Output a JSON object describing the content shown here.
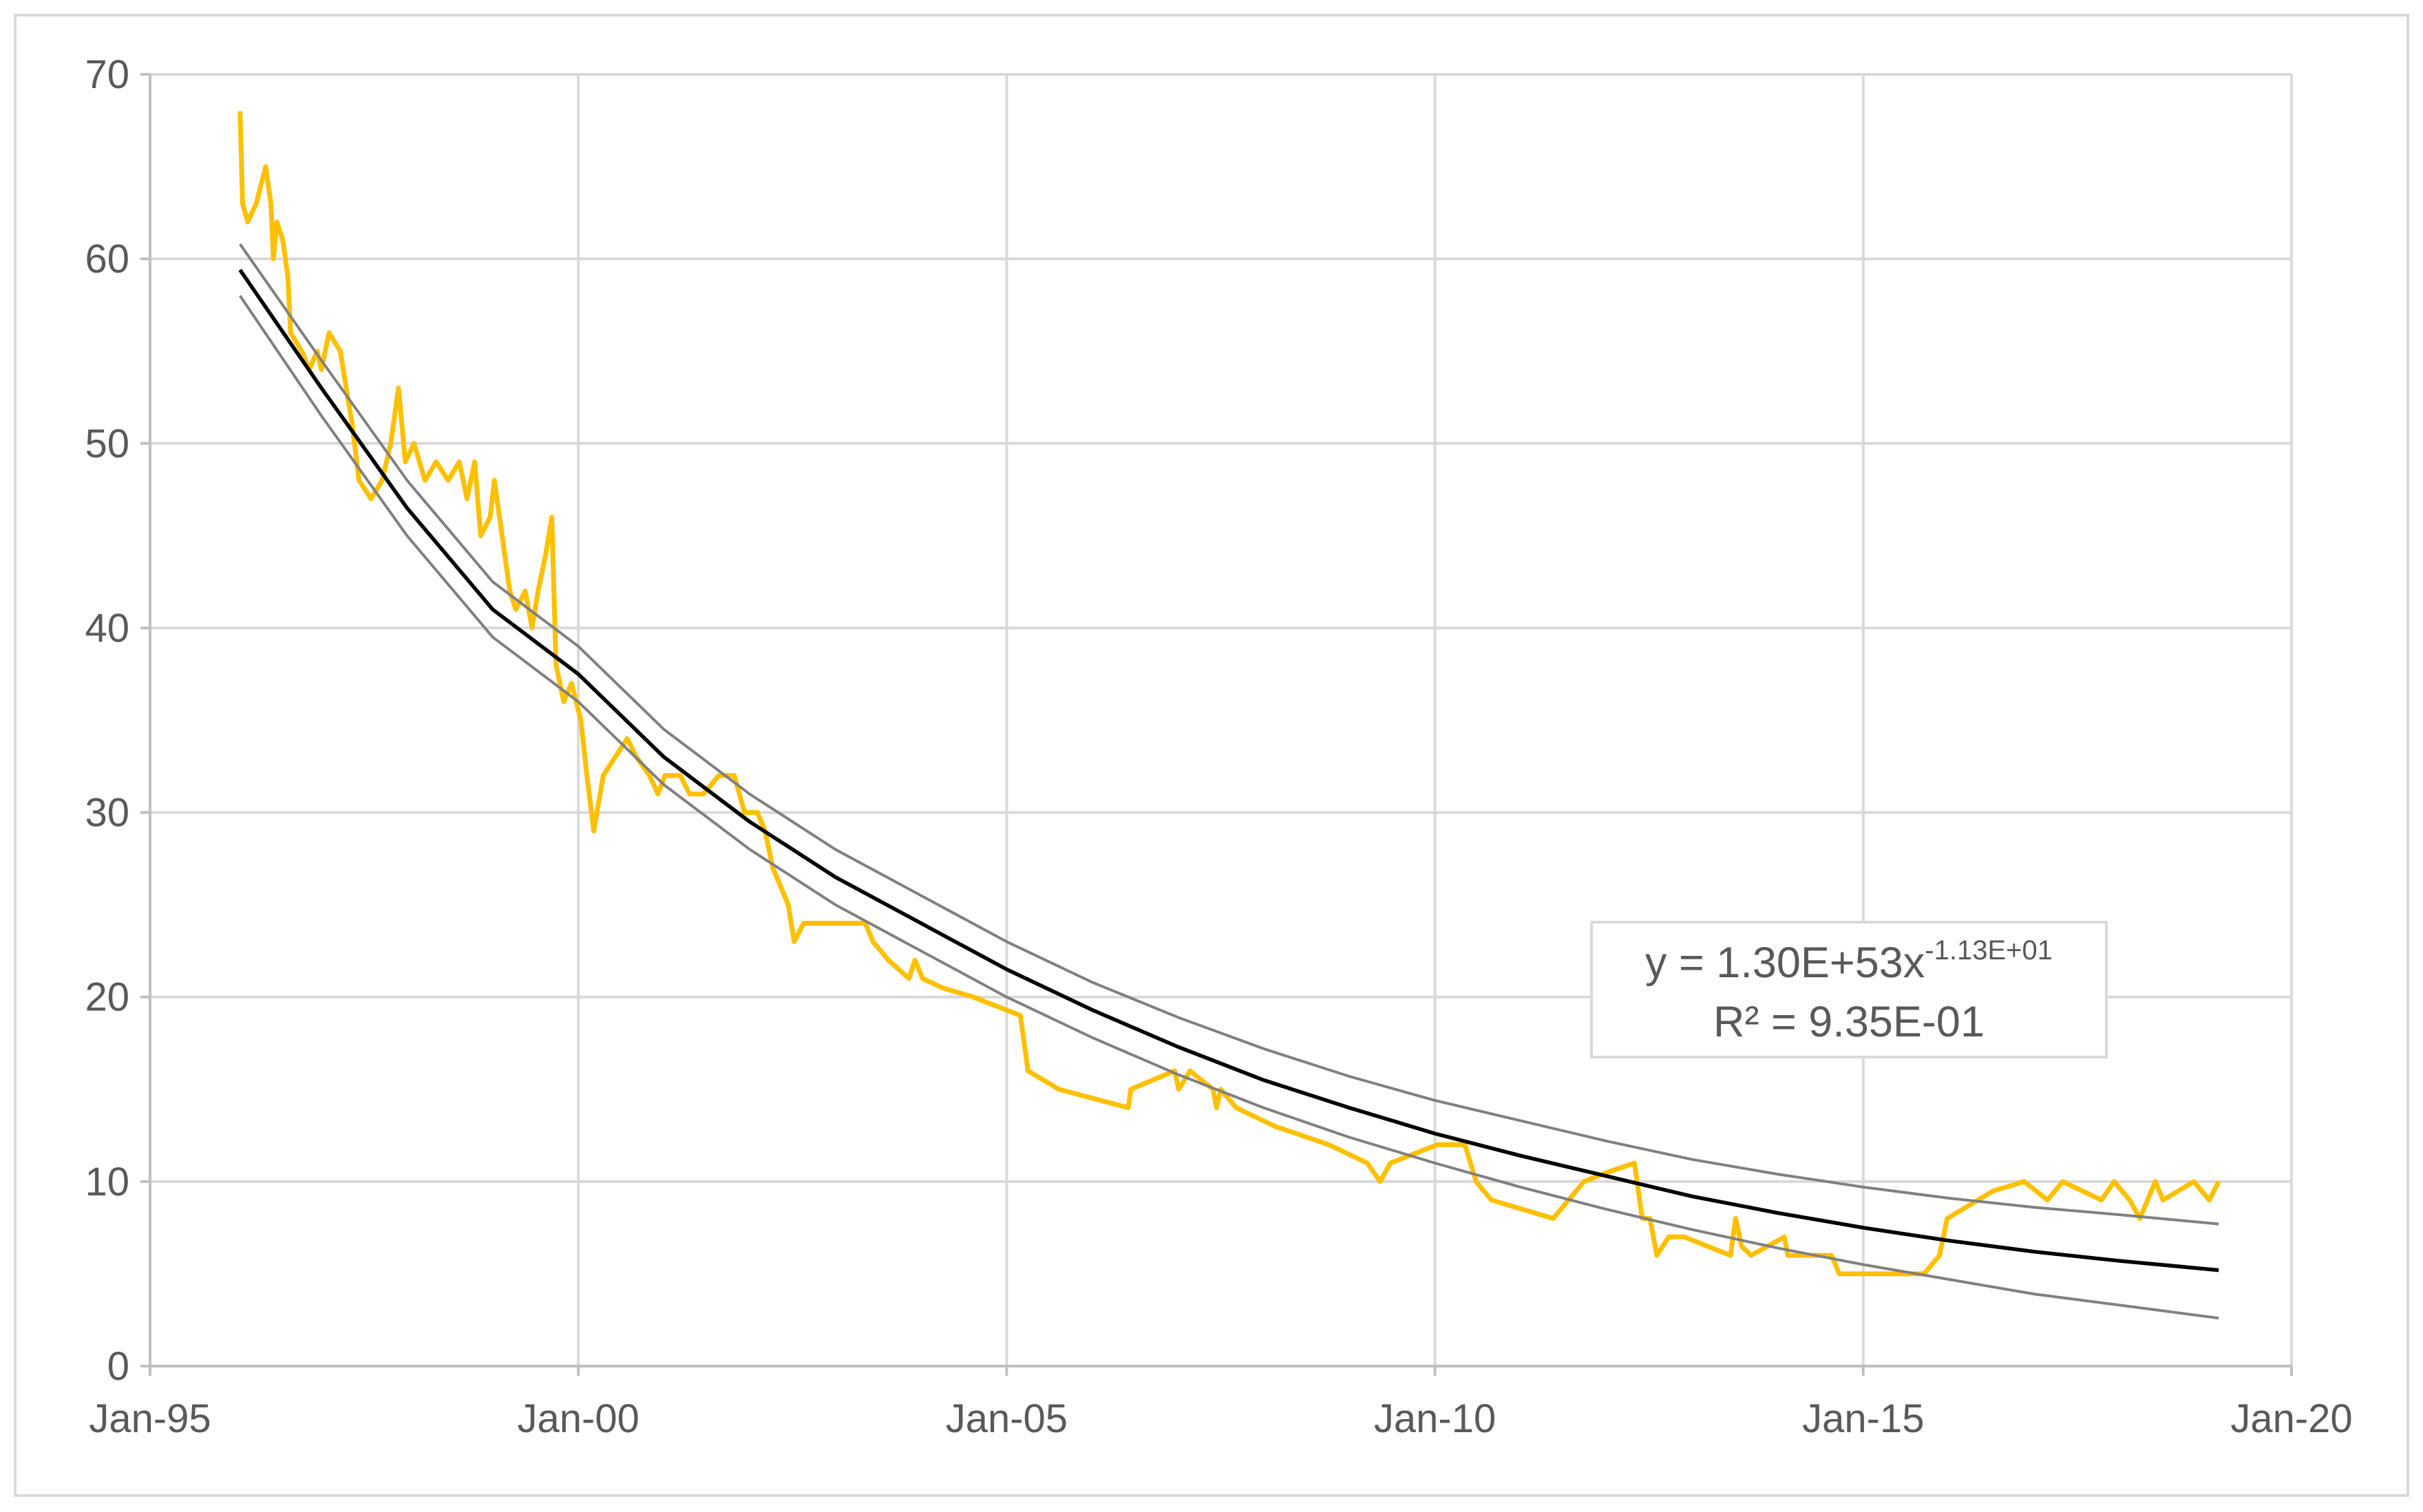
{
  "chart_data": {
    "type": "line",
    "xlim": [
      1995,
      2020
    ],
    "xticks": [
      {
        "value": 1995,
        "label": "Jan-95"
      },
      {
        "value": 2000,
        "label": "Jan-00"
      },
      {
        "value": 2005,
        "label": "Jan-05"
      },
      {
        "value": 2010,
        "label": "Jan-10"
      },
      {
        "value": 2015,
        "label": "Jan-15"
      },
      {
        "value": 2020,
        "label": "Jan-20"
      }
    ],
    "ylim": [
      0,
      70
    ],
    "yticks": [
      0,
      10,
      20,
      30,
      40,
      50,
      60,
      70
    ],
    "grid": true,
    "annotation": {
      "equation": "y = 1.30E+53x",
      "exponent": "-1.13E+01",
      "r_squared": "R² = 9.35E-01"
    },
    "series": [
      {
        "color": "#ffc000",
        "x": [
          1996.05,
          1996.08,
          1996.14,
          1996.24,
          1996.35,
          1996.41,
          1996.44,
          1996.48,
          1996.55,
          1996.61,
          1996.64,
          1996.77,
          1996.86,
          1996.95,
          1997.0,
          1997.09,
          1997.22,
          1997.36,
          1997.44,
          1997.58,
          1997.71,
          1997.81,
          1997.9,
          1997.98,
          1998.08,
          1998.21,
          1998.34,
          1998.48,
          1998.61,
          1998.7,
          1998.79,
          1998.86,
          1998.97,
          1999.02,
          1999.11,
          1999.2,
          1999.27,
          1999.38,
          1999.46,
          1999.53,
          1999.62,
          1999.69,
          1999.74,
          1999.83,
          1999.92,
          2000.03,
          2000.1,
          2000.18,
          2000.29,
          2000.43,
          2000.57,
          2000.68,
          2000.83,
          2000.93,
          2001.01,
          2001.19,
          2001.3,
          2001.46,
          2001.64,
          2001.82,
          2001.94,
          2002.09,
          2002.18,
          2002.27,
          2002.45,
          2002.52,
          2002.63,
          2002.81,
          2003.08,
          2003.35,
          2003.44,
          2003.62,
          2003.86,
          2003.93,
          2004.02,
          2004.25,
          2004.61,
          2005.16,
          2005.25,
          2005.61,
          2006.42,
          2006.45,
          2006.96,
          2007.01,
          2007.14,
          2007.41,
          2007.45,
          2007.5,
          2007.68,
          2008.13,
          2008.76,
          2009.21,
          2009.36,
          2009.48,
          2010.03,
          2010.35,
          2010.48,
          2010.66,
          2011.38,
          2011.47,
          2011.74,
          2012.01,
          2012.33,
          2012.42,
          2012.51,
          2012.59,
          2012.73,
          2012.91,
          2013.45,
          2013.51,
          2013.58,
          2013.69,
          2014.08,
          2014.12,
          2014.63,
          2014.72,
          2015.71,
          2015.89,
          2015.98,
          2016.52,
          2016.88,
          2017.15,
          2017.33,
          2017.78,
          2017.93,
          2018.11,
          2018.23,
          2018.41,
          2018.5,
          2018.86,
          2019.04,
          2019.15
        ],
        "values": [
          68,
          63,
          62,
          63,
          65,
          63,
          60,
          62,
          61,
          59,
          56,
          55,
          54,
          55,
          54,
          56,
          55,
          51,
          48,
          47,
          48,
          50,
          53,
          49,
          50,
          48,
          49,
          48,
          49,
          47,
          49,
          45,
          46,
          48,
          45,
          42,
          41,
          42,
          40,
          42,
          44,
          46,
          38,
          36,
          37,
          35,
          32,
          29,
          32,
          33,
          34,
          33,
          32,
          31,
          32,
          32,
          31,
          31,
          32,
          32,
          30,
          30,
          29,
          27,
          25,
          23,
          24,
          24,
          24,
          24,
          23,
          22,
          21,
          22,
          21,
          20.5,
          20,
          19,
          16,
          15,
          14,
          15,
          16,
          15,
          16,
          15,
          14,
          15,
          14,
          13,
          12,
          11,
          10,
          11,
          12,
          12,
          10,
          9,
          8,
          8.5,
          10,
          10.5,
          11,
          8,
          8,
          6,
          7,
          7,
          6,
          8,
          6.5,
          6,
          7,
          6,
          6,
          5,
          5,
          6,
          8,
          9.5,
          10,
          9,
          10,
          9,
          10,
          9,
          8,
          10,
          9,
          10,
          9,
          10
        ]
      },
      {
        "color": "#808080",
        "x": [
          1996.05,
          1997,
          1998,
          1999,
          2000,
          2001,
          2002,
          2003,
          2004,
          2005,
          2006,
          2007,
          2008,
          2009,
          2010,
          2011,
          2012,
          2013,
          2014,
          2015,
          2016,
          2017,
          2018,
          2019.15
        ],
        "values": [
          60.8,
          54.5,
          48,
          42.5,
          39,
          34.5,
          31,
          28,
          25.5,
          23,
          20.8,
          18.9,
          17.2,
          15.7,
          14.4,
          13.3,
          12.2,
          11.2,
          10.4,
          9.7,
          9.1,
          8.6,
          8.2,
          7.7
        ]
      },
      {
        "color": "#808080",
        "x": [
          1996.05,
          1997,
          1998,
          1999,
          2000,
          2001,
          2002,
          2003,
          2004,
          2005,
          2006,
          2007,
          2008,
          2009,
          2010,
          2011,
          2012,
          2013,
          2014,
          2015,
          2016,
          2017,
          2018,
          2019.15
        ],
        "values": [
          58,
          51.5,
          45,
          39.5,
          36,
          31.5,
          28,
          25,
          22.5,
          20,
          17.8,
          15.8,
          14,
          12.4,
          11,
          9.7,
          8.5,
          7.4,
          6.4,
          5.5,
          4.7,
          3.9,
          3.3,
          2.6
        ]
      },
      {
        "color": "#000000",
        "x": [
          1996.05,
          1997,
          1998,
          1999,
          2000,
          2001,
          2002,
          2003,
          2004,
          2005,
          2006,
          2007,
          2008,
          2009,
          2010,
          2011,
          2012,
          2013,
          2014,
          2015,
          2016,
          2017,
          2018,
          2019.15
        ],
        "values": [
          59.4,
          53,
          46.5,
          41,
          37.5,
          33,
          29.5,
          26.5,
          24,
          21.5,
          19.3,
          17.3,
          15.5,
          14,
          12.6,
          11.4,
          10.3,
          9.2,
          8.3,
          7.5,
          6.8,
          6.2,
          5.7,
          5.2
        ]
      }
    ]
  }
}
